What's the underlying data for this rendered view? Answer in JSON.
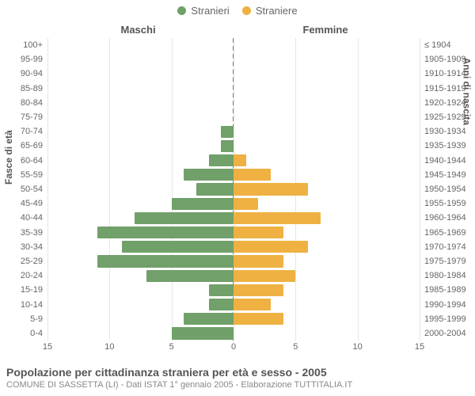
{
  "chart": {
    "type": "population-pyramid",
    "background_color": "#ffffff",
    "grid_color": "#e6e6e6",
    "text_color": "#666666",
    "title_color": "#555555",
    "legend": [
      {
        "label": "Stranieri",
        "color": "#71a06a"
      },
      {
        "label": "Straniere",
        "color": "#eeb142"
      }
    ],
    "column_titles": {
      "left": "Maschi",
      "right": "Femmine"
    },
    "y_axis_left_title": "Fasce di età",
    "y_axis_right_title": "Anni di nascita",
    "x_axis": {
      "max": 15,
      "ticks_left": [
        15,
        10,
        5,
        0
      ],
      "ticks_right": [
        0,
        5,
        10,
        15
      ]
    },
    "center_line_color": "#888855",
    "bar_colors": {
      "male": "#71a06a",
      "female": "#eeb142"
    },
    "label_fontsize": 11,
    "rows": [
      {
        "age": "100+",
        "birth": "≤ 1904",
        "m": 0,
        "f": 0
      },
      {
        "age": "95-99",
        "birth": "1905-1909",
        "m": 0,
        "f": 0
      },
      {
        "age": "90-94",
        "birth": "1910-1914",
        "m": 0,
        "f": 0
      },
      {
        "age": "85-89",
        "birth": "1915-1919",
        "m": 0,
        "f": 0
      },
      {
        "age": "80-84",
        "birth": "1920-1924",
        "m": 0,
        "f": 0
      },
      {
        "age": "75-79",
        "birth": "1925-1929",
        "m": 0,
        "f": 0
      },
      {
        "age": "70-74",
        "birth": "1930-1934",
        "m": 1,
        "f": 0
      },
      {
        "age": "65-69",
        "birth": "1935-1939",
        "m": 1,
        "f": 0
      },
      {
        "age": "60-64",
        "birth": "1940-1944",
        "m": 2,
        "f": 1
      },
      {
        "age": "55-59",
        "birth": "1945-1949",
        "m": 4,
        "f": 3
      },
      {
        "age": "50-54",
        "birth": "1950-1954",
        "m": 3,
        "f": 6
      },
      {
        "age": "45-49",
        "birth": "1955-1959",
        "m": 5,
        "f": 2
      },
      {
        "age": "40-44",
        "birth": "1960-1964",
        "m": 8,
        "f": 7
      },
      {
        "age": "35-39",
        "birth": "1965-1969",
        "m": 11,
        "f": 4
      },
      {
        "age": "30-34",
        "birth": "1970-1974",
        "m": 9,
        "f": 6
      },
      {
        "age": "25-29",
        "birth": "1975-1979",
        "m": 11,
        "f": 4
      },
      {
        "age": "20-24",
        "birth": "1980-1984",
        "m": 7,
        "f": 5
      },
      {
        "age": "15-19",
        "birth": "1985-1989",
        "m": 2,
        "f": 4
      },
      {
        "age": "10-14",
        "birth": "1990-1994",
        "m": 2,
        "f": 3
      },
      {
        "age": "5-9",
        "birth": "1995-1999",
        "m": 4,
        "f": 4
      },
      {
        "age": "0-4",
        "birth": "2000-2004",
        "m": 5,
        "f": 0
      }
    ]
  },
  "footer": {
    "title": "Popolazione per cittadinanza straniera per età e sesso - 2005",
    "subtitle": "COMUNE DI SASSETTA (LI) - Dati ISTAT 1° gennaio 2005 - Elaborazione TUTTITALIA.IT"
  }
}
